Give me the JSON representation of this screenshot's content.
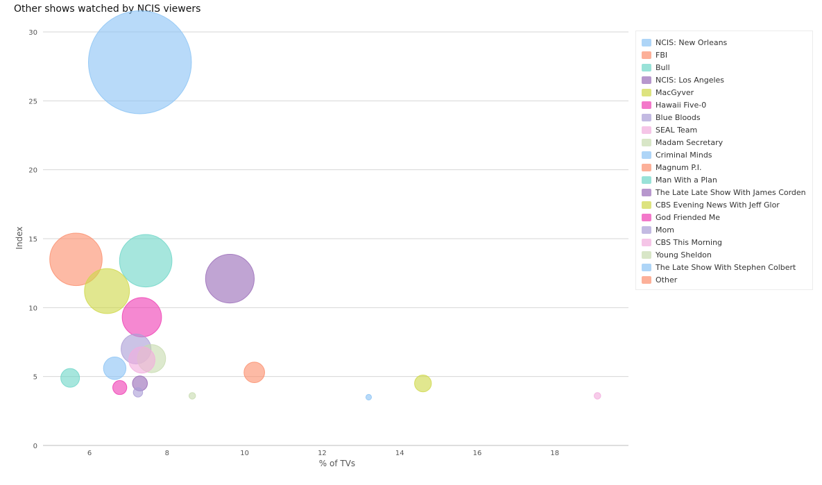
{
  "title": "Other shows watched by NCIS viewers",
  "chart_data": {
    "type": "scatter",
    "title": "Other shows watched by NCIS viewers",
    "xlabel": "% of TVs",
    "ylabel": "Index",
    "xlim": [
      4.8,
      19.9
    ],
    "ylim": [
      0,
      30
    ],
    "xticks": [
      6,
      8,
      10,
      12,
      14,
      16,
      18
    ],
    "yticks": [
      0,
      5,
      10,
      15,
      20,
      25,
      30
    ],
    "grid": "horizontal",
    "legend": "right",
    "series": [
      {
        "name": "NCIS: New Orleans",
        "color": "#8cc4f5",
        "x": 7.3,
        "y": 27.8,
        "size": 55.0
      },
      {
        "name": "FBI",
        "color": "#fb8f6e",
        "x": 5.65,
        "y": 13.5,
        "size": 28.0
      },
      {
        "name": "Bull",
        "color": "#6fd6c8",
        "x": 7.45,
        "y": 13.4,
        "size": 28.0
      },
      {
        "name": "NCIS: Los Angeles",
        "color": "#9a6cb8",
        "x": 9.62,
        "y": 12.1,
        "size": 26.0
      },
      {
        "name": "MacGyver",
        "color": "#cfd84a",
        "x": 6.45,
        "y": 11.2,
        "size": 24.0
      },
      {
        "name": "Hawaii Five-0",
        "color": "#ef3fb4",
        "x": 7.35,
        "y": 9.3,
        "size": 21.0
      },
      {
        "name": "Blue Bloods",
        "color": "#ab9ed6",
        "x": 7.2,
        "y": 7.0,
        "size": 16.0
      },
      {
        "name": "SEAL Team",
        "color": "#f2addd",
        "x": 7.35,
        "y": 6.2,
        "size": 14.0
      },
      {
        "name": "Madam Secretary",
        "color": "#c8dcb0",
        "x": 7.6,
        "y": 6.3,
        "size": 15.0
      },
      {
        "name": "Criminal Minds",
        "color": "#8cc4f5",
        "x": 6.65,
        "y": 5.6,
        "size": 12.0
      },
      {
        "name": "Magnum P.I.",
        "color": "#fb8f6e",
        "x": 10.25,
        "y": 5.3,
        "size": 11.0
      },
      {
        "name": "Man With a Plan",
        "color": "#6fd6c8",
        "x": 5.5,
        "y": 4.9,
        "size": 10.0
      },
      {
        "name": "The Late Late Show With James Corden",
        "color": "#9a6cb8",
        "x": 7.3,
        "y": 4.5,
        "size": 8.0
      },
      {
        "name": "CBS Evening News With Jeff Glor",
        "color": "#cfd84a",
        "x": 14.6,
        "y": 4.5,
        "size": 9.0
      },
      {
        "name": "God Friended Me",
        "color": "#ef3fb4",
        "x": 6.78,
        "y": 4.2,
        "size": 7.5
      },
      {
        "name": "Mom",
        "color": "#ab9ed6",
        "x": 7.25,
        "y": 3.85,
        "size": 5.0
      },
      {
        "name": "CBS This Morning",
        "color": "#f2addd",
        "x": 19.1,
        "y": 3.6,
        "size": 3.5
      },
      {
        "name": "Young Sheldon",
        "color": "#c8dcb0",
        "x": 8.65,
        "y": 3.6,
        "size": 3.5
      },
      {
        "name": "The Late Show With Stephen Colbert",
        "color": "#8cc4f5",
        "x": 13.2,
        "y": 3.5,
        "size": 3.0
      },
      {
        "name": "Other",
        "color": "#fb8f6e",
        "x": null,
        "y": null,
        "size": 0
      }
    ]
  }
}
